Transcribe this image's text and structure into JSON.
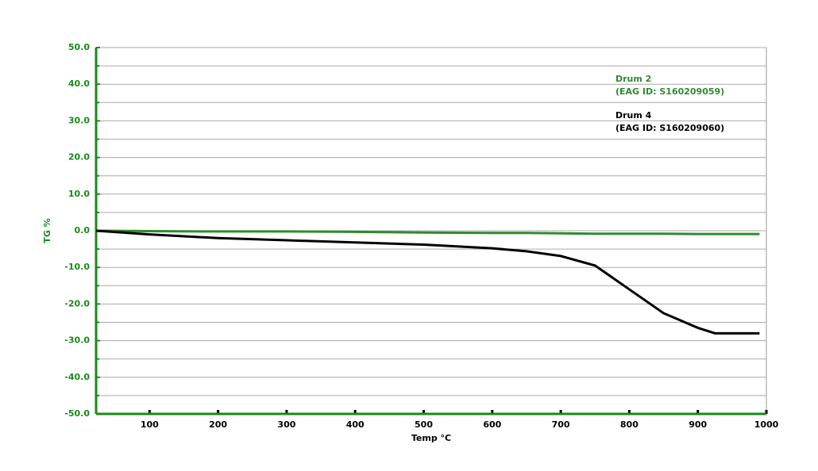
{
  "chart_data": {
    "type": "line",
    "x_label": "Temp °C",
    "y_label": "TG %",
    "x": [
      22,
      100,
      200,
      300,
      400,
      500,
      600,
      650,
      700,
      750,
      800,
      850,
      900,
      925,
      990
    ],
    "series": [
      {
        "name": "Drum 2",
        "subtitle": "(EAG ID: S160209059)",
        "color": "#2e8b2e",
        "values": [
          0,
          -0.1,
          -0.2,
          -0.2,
          -0.3,
          -0.5,
          -0.6,
          -0.6,
          -0.7,
          -0.8,
          -0.8,
          -0.8,
          -0.9,
          -0.9,
          -0.9
        ]
      },
      {
        "name": "Drum 4",
        "subtitle": "(EAG ID: S160209060)",
        "color": "#000000",
        "values": [
          0,
          -1,
          -2,
          -2.6,
          -3.2,
          -3.8,
          -4.8,
          -5.6,
          -6.9,
          -9.5,
          -16,
          -22.5,
          -26.5,
          -28,
          -28
        ]
      }
    ],
    "xlim": [
      22,
      1000
    ],
    "xticks": [
      100,
      200,
      300,
      400,
      500,
      600,
      700,
      800,
      900,
      1000
    ],
    "ylim": [
      -50,
      50
    ],
    "yticks": [
      {
        "value": -50,
        "label": "-50.0"
      },
      {
        "value": -40,
        "label": "-40.0"
      },
      {
        "value": -30,
        "label": "-30.0"
      },
      {
        "value": -20,
        "label": "-20.0"
      },
      {
        "value": -10,
        "label": "-10.0"
      },
      {
        "value": 0,
        "label": "0.0"
      },
      {
        "value": 10,
        "label": "10.0"
      },
      {
        "value": 20,
        "label": "20.0"
      },
      {
        "value": 30,
        "label": "30.0"
      },
      {
        "value": 40,
        "label": "40.0"
      },
      {
        "value": 50,
        "label": "50.0"
      }
    ],
    "yminorticks": [
      -45,
      -35,
      -25,
      -15,
      -5,
      5,
      15,
      25,
      35,
      45
    ],
    "grid": true,
    "axis_color": "#1a8a1a"
  }
}
